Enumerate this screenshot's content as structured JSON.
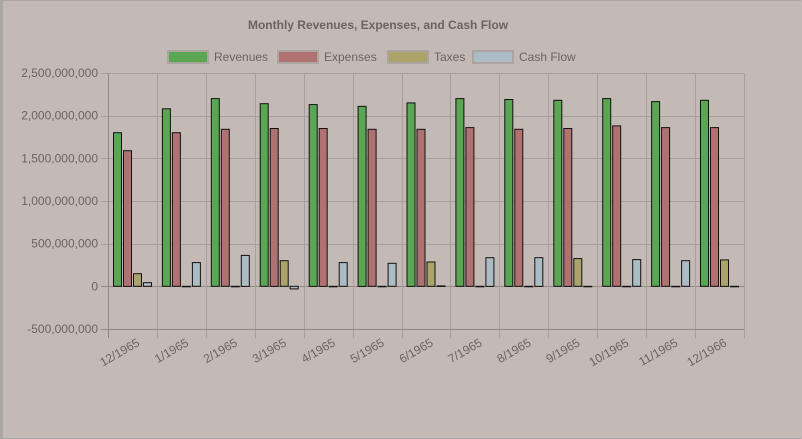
{
  "chart_data": {
    "type": "bar",
    "title": "Monthly Revenues, Expenses, and Cash Flow",
    "xlabel": "",
    "ylabel": "",
    "ylim": [
      -500000000,
      2500000000
    ],
    "yticks": [
      2500000000,
      2000000000,
      1500000000,
      1000000000,
      500000000,
      0,
      -500000000
    ],
    "ytick_labels": [
      "2,500,000,000",
      "2,000,000,000",
      "1,500,000,000",
      "1,000,000,000",
      "500,000,000",
      "0",
      "-500,000,000"
    ],
    "grid": true,
    "legend_position": "top",
    "categories": [
      "12/1965",
      "1/1965",
      "2/1965",
      "3/1965",
      "4/1965",
      "5/1965",
      "6/1965",
      "7/1965",
      "8/1965",
      "9/1965",
      "10/1965",
      "11/1965",
      "12/1966"
    ],
    "series": [
      {
        "name": "Revenues",
        "color": "#5ba653",
        "values": [
          1800000000,
          2080000000,
          2200000000,
          2140000000,
          2130000000,
          2110000000,
          2150000000,
          2200000000,
          2190000000,
          2180000000,
          2200000000,
          2165000000,
          2180000000
        ]
      },
      {
        "name": "Expenses",
        "color": "#b07270",
        "values": [
          1590000000,
          1800000000,
          1840000000,
          1850000000,
          1850000000,
          1840000000,
          1840000000,
          1860000000,
          1840000000,
          1850000000,
          1880000000,
          1860000000,
          1860000000
        ]
      },
      {
        "name": "Taxes",
        "color": "#aca36a",
        "values": [
          148000000,
          0,
          0,
          300000000,
          0,
          0,
          285000000,
          0,
          0,
          325000000,
          0,
          0,
          310000000
        ]
      },
      {
        "name": "Cash Flow",
        "color": "#abbcc4",
        "values": [
          42000000,
          278000000,
          363000000,
          -30000000,
          278000000,
          270000000,
          5000000,
          336000000,
          336000000,
          0,
          313000000,
          300000000,
          0
        ]
      }
    ]
  }
}
